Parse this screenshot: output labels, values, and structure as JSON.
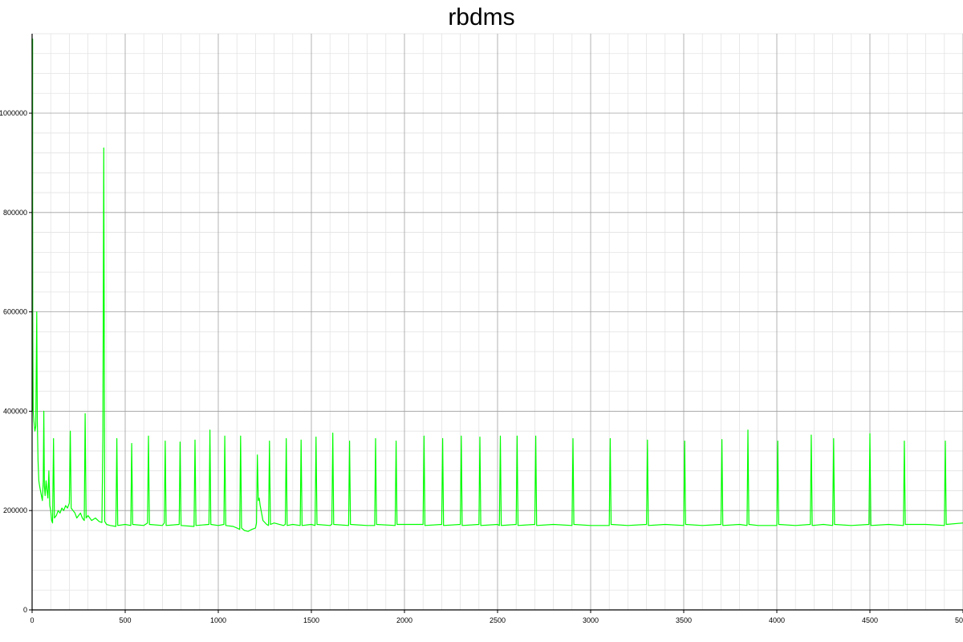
{
  "chart_data": {
    "type": "line",
    "title": "rbdms",
    "xlabel": "",
    "ylabel": "",
    "xlim": [
      0,
      5000
    ],
    "ylim": [
      0,
      1160000
    ],
    "x_ticks": [
      0,
      500,
      1000,
      1500,
      2000,
      2500,
      3000,
      3500,
      4000,
      4500,
      5000
    ],
    "x_tick_labels": [
      "0",
      "500",
      "1000",
      "1500",
      "2000",
      "2500",
      "3000",
      "3500",
      "4000",
      "4500",
      "5000"
    ],
    "y_ticks": [
      0,
      200000,
      400000,
      600000,
      800000,
      1000000
    ],
    "y_tick_labels": [
      "0",
      "200000",
      "400000",
      "600000",
      "800000",
      "1000000"
    ],
    "grid": true,
    "legend": "none",
    "colors": {
      "series": "#00ff00",
      "initial_spike": "#00cc00",
      "major_grid": "#a0a0a0",
      "minor_grid": "#e3e3e3",
      "axis": "#000000"
    },
    "series": [
      {
        "x": [
          0,
          3,
          6,
          10,
          15,
          20,
          25,
          28,
          32,
          36,
          40,
          45,
          50,
          55,
          60,
          63,
          66,
          70,
          75,
          80,
          85,
          90,
          95,
          100,
          105,
          110,
          115,
          120,
          130,
          140,
          150,
          160,
          170,
          180,
          190,
          200,
          205,
          210,
          220,
          230,
          240,
          250,
          260,
          270,
          280,
          285,
          290,
          300,
          320,
          340,
          360,
          375,
          380,
          385,
          390,
          400,
          420,
          450,
          455,
          460,
          500,
          530,
          535,
          540,
          600,
          620,
          625,
          630,
          700,
          710,
          715,
          720,
          790,
          795,
          800,
          870,
          875,
          880,
          950,
          955,
          960,
          1000,
          1030,
          1035,
          1040,
          1080,
          1100,
          1115,
          1120,
          1125,
          1140,
          1160,
          1180,
          1200,
          1205,
          1210,
          1215,
          1220,
          1225,
          1240,
          1260,
          1270,
          1275,
          1280,
          1300,
          1350,
          1360,
          1365,
          1370,
          1400,
          1440,
          1445,
          1450,
          1500,
          1520,
          1525,
          1530,
          1600,
          1610,
          1615,
          1620,
          1700,
          1705,
          1710,
          1800,
          1840,
          1845,
          1850,
          1950,
          1955,
          1960,
          2100,
          2105,
          2110,
          2200,
          2205,
          2210,
          2300,
          2305,
          2310,
          2400,
          2405,
          2410,
          2500,
          2510,
          2515,
          2520,
          2600,
          2605,
          2610,
          2700,
          2705,
          2710,
          2800,
          2900,
          2905,
          2910,
          3000,
          3100,
          3105,
          3110,
          3200,
          3300,
          3305,
          3310,
          3400,
          3500,
          3505,
          3510,
          3600,
          3700,
          3705,
          3710,
          3800,
          3840,
          3845,
          3850,
          3900,
          4000,
          4005,
          4010,
          4100,
          4180,
          4185,
          4190,
          4250,
          4300,
          4305,
          4310,
          4400,
          4495,
          4500,
          4505,
          4600,
          4680,
          4685,
          4690,
          4800,
          4900,
          4905,
          4910,
          5000
        ],
        "values": [
          1150000,
          600000,
          400000,
          380000,
          360000,
          370000,
          600000,
          380000,
          300000,
          260000,
          250000,
          240000,
          230000,
          220000,
          260000,
          400000,
          250000,
          230000,
          260000,
          240000,
          225000,
          280000,
          210000,
          200000,
          180000,
          175000,
          345000,
          185000,
          190000,
          200000,
          195000,
          205000,
          200000,
          210000,
          205000,
          215000,
          360000,
          205000,
          200000,
          195000,
          185000,
          190000,
          195000,
          185000,
          180000,
          395000,
          185000,
          190000,
          180000,
          185000,
          178000,
          176000,
          350000,
          930000,
          178000,
          172000,
          170000,
          168000,
          345000,
          170000,
          172000,
          170000,
          335000,
          172000,
          170000,
          175000,
          350000,
          172000,
          170000,
          175000,
          340000,
          170000,
          172000,
          338000,
          170000,
          168000,
          342000,
          170000,
          172000,
          362000,
          172000,
          170000,
          172000,
          350000,
          170000,
          168000,
          165000,
          162000,
          350000,
          165000,
          160000,
          158000,
          162000,
          165000,
          175000,
          312000,
          220000,
          225000,
          210000,
          180000,
          172000,
          170000,
          340000,
          172000,
          175000,
          170000,
          172000,
          345000,
          170000,
          172000,
          170000,
          342000,
          170000,
          172000,
          170000,
          348000,
          172000,
          170000,
          172000,
          356000,
          172000,
          170000,
          340000,
          172000,
          170000,
          170000,
          345000,
          172000,
          170000,
          340000,
          172000,
          172000,
          350000,
          170000,
          172000,
          345000,
          170000,
          172000,
          350000,
          170000,
          172000,
          348000,
          170000,
          172000,
          170000,
          350000,
          170000,
          172000,
          350000,
          170000,
          172000,
          350000,
          170000,
          172000,
          170000,
          345000,
          172000,
          170000,
          170000,
          345000,
          172000,
          170000,
          172000,
          342000,
          170000,
          172000,
          170000,
          340000,
          172000,
          170000,
          172000,
          343000,
          170000,
          172000,
          170000,
          362000,
          172000,
          170000,
          170000,
          340000,
          172000,
          170000,
          172000,
          352000,
          170000,
          172000,
          170000,
          345000,
          172000,
          170000,
          172000,
          355000,
          170000,
          172000,
          170000,
          340000,
          172000,
          172000,
          170000,
          340000,
          172000,
          175000
        ]
      }
    ]
  }
}
